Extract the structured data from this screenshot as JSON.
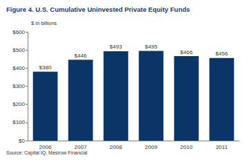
{
  "chart_data": {
    "type": "bar",
    "title": "Figure 4. U.S. Cumulative Uninvested Private Equity Funds",
    "y_label": "$ in billions",
    "source": "Source: Capital IQ, Mesirow Financial",
    "categories": [
      "2006",
      "2007",
      "2008",
      "2009",
      "2010",
      "2011"
    ],
    "values": [
      380,
      446,
      493,
      495,
      466,
      456
    ],
    "value_labels": [
      "$380",
      "$446",
      "$493",
      "$495",
      "$466",
      "$456"
    ],
    "color": "#0b3566",
    "ylim": [
      0,
      600
    ],
    "yticks": [
      {
        "value": 0,
        "label": "$0"
      },
      {
        "value": 100,
        "label": "$100"
      },
      {
        "value": 200,
        "label": "$200"
      },
      {
        "value": 300,
        "label": "$300"
      },
      {
        "value": 400,
        "label": "$400"
      },
      {
        "value": 500,
        "label": "$500"
      },
      {
        "value": 600,
        "label": "$600"
      }
    ],
    "grid": false,
    "data_labels": true
  }
}
